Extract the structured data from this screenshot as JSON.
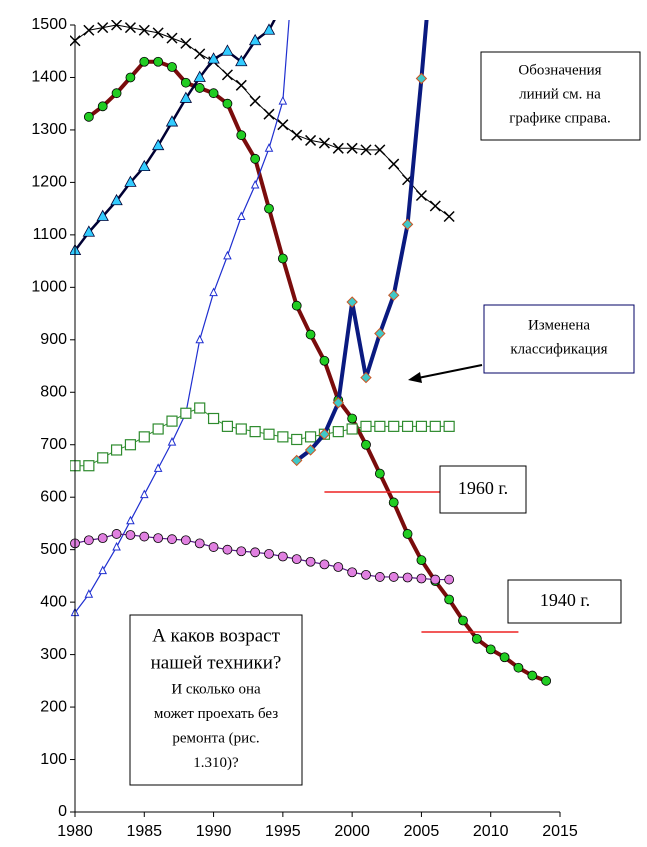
{
  "chart_data": {
    "type": "line",
    "xlim": [
      1980,
      2015
    ],
    "xticks": [
      1980,
      1985,
      1990,
      1995,
      2000,
      2005,
      2010,
      2015
    ],
    "ylim": [
      0,
      1500
    ],
    "yticks": [
      0,
      100,
      200,
      300,
      400,
      500,
      600,
      700,
      800,
      900,
      1000,
      1100,
      1200,
      1300,
      1400,
      1500
    ],
    "series": [
      {
        "color": "#000000",
        "marker": "x",
        "marker_color": "#000000",
        "line_width": 1,
        "x": [
          1980,
          1981,
          1982,
          1983,
          1984,
          1985,
          1986,
          1987,
          1988,
          1989,
          1990,
          1991,
          1992,
          1993,
          1994,
          1995,
          1996,
          1997,
          1998,
          1999,
          2000,
          2001,
          2002,
          2003,
          2004,
          2005,
          2006,
          2007
        ],
        "values": [
          1470,
          1490,
          1495,
          1500,
          1495,
          1490,
          1485,
          1475,
          1465,
          1445,
          1430,
          1405,
          1385,
          1355,
          1330,
          1310,
          1290,
          1280,
          1275,
          1265,
          1265,
          1262,
          1262,
          1235,
          1205,
          1175,
          1155,
          1135
        ]
      },
      {
        "color": "#7a0c0c",
        "marker": "circle",
        "marker_color": "#22cc22",
        "line_width": 4,
        "x": [
          1981,
          1982,
          1983,
          1984,
          1985,
          1986,
          1987,
          1988,
          1989,
          1990,
          1991,
          1992,
          1993,
          1994,
          1995,
          1996,
          1997,
          1998,
          1999,
          2000,
          2001,
          2002,
          2003,
          2004,
          2005,
          2006,
          2007,
          2008,
          2009,
          2010,
          2011,
          2012,
          2013,
          2014
        ],
        "values": [
          1325,
          1345,
          1370,
          1400,
          1430,
          1430,
          1420,
          1390,
          1380,
          1370,
          1350,
          1290,
          1245,
          1150,
          1055,
          965,
          910,
          860,
          785,
          750,
          700,
          645,
          590,
          530,
          480,
          440,
          405,
          365,
          330,
          310,
          295,
          275,
          260,
          250
        ]
      },
      {
        "color": "#000033",
        "marker": "triangle",
        "marker_color": "#33ccff",
        "line_width": 2.5,
        "x": [
          1980,
          1981,
          1982,
          1983,
          1984,
          1985,
          1986,
          1987,
          1988,
          1989,
          1990,
          1991,
          1992,
          1993,
          1994,
          1995
        ],
        "values": [
          1070,
          1105,
          1135,
          1165,
          1200,
          1230,
          1270,
          1315,
          1360,
          1400,
          1435,
          1450,
          1430,
          1470,
          1490,
          1540
        ]
      },
      {
        "color": "#1f2fd0",
        "marker": "triangle-small",
        "marker_color": "#ffffff",
        "line_width": 1.2,
        "x": [
          1980,
          1981,
          1982,
          1983,
          1984,
          1985,
          1986,
          1987,
          1988,
          1989,
          1990,
          1991,
          1992,
          1993,
          1994,
          1995,
          1996
        ],
        "values": [
          380,
          415,
          460,
          505,
          555,
          605,
          655,
          705,
          760,
          900,
          990,
          1060,
          1135,
          1195,
          1265,
          1355,
          1700
        ]
      },
      {
        "color": "#2e8b2e",
        "marker": "square",
        "marker_color": "#ffffff",
        "line_width": 1,
        "x": [
          1980,
          1981,
          1982,
          1983,
          1984,
          1985,
          1986,
          1987,
          1988,
          1989,
          1990,
          1991,
          1992,
          1993,
          1994,
          1995,
          1996,
          1997,
          1998,
          1999,
          2000,
          2001,
          2002,
          2003,
          2004,
          2005,
          2006,
          2007
        ],
        "values": [
          660,
          660,
          675,
          690,
          700,
          715,
          730,
          745,
          760,
          770,
          750,
          735,
          730,
          725,
          720,
          715,
          710,
          715,
          720,
          725,
          730,
          735,
          735,
          735,
          735,
          735,
          735,
          735
        ]
      },
      {
        "color": "#5a1a8a",
        "marker": "circle",
        "marker_color": "#e080e0",
        "line_width": 1.2,
        "x": [
          1980,
          1981,
          1982,
          1983,
          1984,
          1985,
          1986,
          1987,
          1988,
          1989,
          1990,
          1991,
          1992,
          1993,
          1994,
          1995,
          1996,
          1997,
          1998,
          1999,
          2000,
          2001,
          2002,
          2003,
          2004,
          2005,
          2006,
          2007
        ],
        "values": [
          512,
          518,
          522,
          530,
          528,
          525,
          522,
          520,
          518,
          512,
          505,
          500,
          497,
          495,
          492,
          487,
          482,
          477,
          472,
          467,
          457,
          452,
          448,
          448,
          447,
          445,
          443,
          443
        ]
      },
      {
        "color": "#0a1a80",
        "marker": "diamond",
        "marker_color": "#40c8c8",
        "line_width": 4,
        "x": [
          1996,
          1997,
          1998,
          1999,
          2000,
          2001,
          2002,
          2003,
          2004,
          2005,
          2006
        ],
        "values": [
          670,
          690,
          720,
          780,
          972,
          828,
          912,
          985,
          1120,
          1398,
          1700
        ]
      }
    ],
    "reference_lines": [
      {
        "label": "1960 г.",
        "value": 610,
        "x": [
          1998,
          2006.5
        ],
        "color": "#ee2222"
      },
      {
        "label": "1940 г.",
        "value": 343,
        "x": [
          2005,
          2012
        ],
        "color": "#ee2222"
      }
    ],
    "annotations": {
      "legend_note": [
        "Обозначения",
        "линий см. на",
        "графике справа."
      ],
      "classification_note": [
        "Изменена",
        "классификация"
      ],
      "question_big": [
        "А каков возраст",
        "нашей  техники?"
      ],
      "question_small": [
        "И сколько она",
        "может проехать без",
        "ремонта (рис.",
        "1.310)?"
      ]
    }
  }
}
